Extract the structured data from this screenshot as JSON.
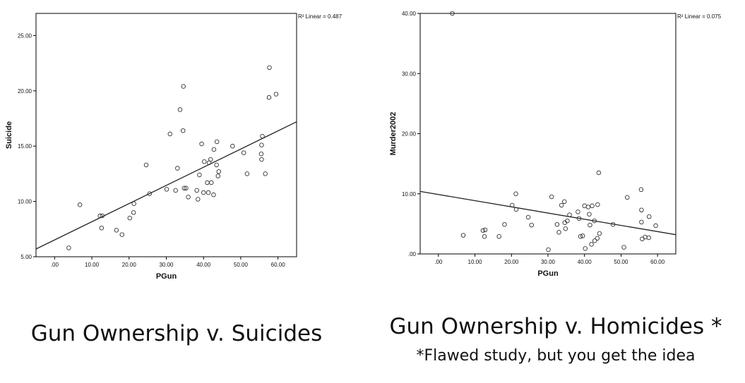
{
  "chart_data": [
    {
      "type": "scatter",
      "title": "",
      "xlabel": "PGun",
      "ylabel": "Suicide",
      "xlim": [
        -5,
        65
      ],
      "ylim": [
        5,
        27
      ],
      "x_ticks": [
        ".00",
        "10.00",
        "20.00",
        "30.00",
        "40.00",
        "50.00",
        "60.00"
      ],
      "x_tick_values": [
        0,
        10,
        20,
        30,
        40,
        50,
        60
      ],
      "y_ticks": [
        "5.00",
        "10.00",
        "15.00",
        "20.00",
        "25.00"
      ],
      "y_tick_values": [
        5,
        10,
        15,
        20,
        25
      ],
      "annotation": "R² Linear = 0.487",
      "fit_line": [
        [
          -5,
          5.7
        ],
        [
          65,
          17.2
        ]
      ],
      "points": [
        [
          3.8,
          5.8
        ],
        [
          6.8,
          9.7
        ],
        [
          12.2,
          8.7
        ],
        [
          12.6,
          7.6
        ],
        [
          12.8,
          8.7
        ],
        [
          16.6,
          7.4
        ],
        [
          18.1,
          7.0
        ],
        [
          20.2,
          8.5
        ],
        [
          21.2,
          9.0
        ],
        [
          21.3,
          9.8
        ],
        [
          24.6,
          13.3
        ],
        [
          25.5,
          10.7
        ],
        [
          30.1,
          11.1
        ],
        [
          31.0,
          16.1
        ],
        [
          32.5,
          11.0
        ],
        [
          33.0,
          13.0
        ],
        [
          33.7,
          18.3
        ],
        [
          34.5,
          16.4
        ],
        [
          34.6,
          20.4
        ],
        [
          34.8,
          11.2
        ],
        [
          35.3,
          11.2
        ],
        [
          35.9,
          10.4
        ],
        [
          38.2,
          11.0
        ],
        [
          38.5,
          10.2
        ],
        [
          38.9,
          12.4
        ],
        [
          39.5,
          15.2
        ],
        [
          40.0,
          10.8
        ],
        [
          40.2,
          13.6
        ],
        [
          41.0,
          11.7
        ],
        [
          41.3,
          10.8
        ],
        [
          41.5,
          13.5
        ],
        [
          41.9,
          13.8
        ],
        [
          42.1,
          11.7
        ],
        [
          42.7,
          10.6
        ],
        [
          42.8,
          14.7
        ],
        [
          43.5,
          13.3
        ],
        [
          43.6,
          15.4
        ],
        [
          43.9,
          12.3
        ],
        [
          44.1,
          12.7
        ],
        [
          47.8,
          15.0
        ],
        [
          50.8,
          14.4
        ],
        [
          51.7,
          12.5
        ],
        [
          55.5,
          14.3
        ],
        [
          55.6,
          13.8
        ],
        [
          55.6,
          15.1
        ],
        [
          55.8,
          15.9
        ],
        [
          56.6,
          12.5
        ],
        [
          57.6,
          19.4
        ],
        [
          57.7,
          22.1
        ],
        [
          59.5,
          19.7
        ]
      ],
      "grid": false,
      "legend": "none"
    },
    {
      "type": "scatter",
      "title": "",
      "xlabel": "PGun",
      "ylabel": "Murder2002",
      "xlim": [
        -5,
        65
      ],
      "ylim": [
        0,
        40
      ],
      "x_ticks": [
        ".00",
        "10.00",
        "20.00",
        "30.00",
        "40.00",
        "50.00",
        "60.00"
      ],
      "x_tick_values": [
        0,
        10,
        20,
        30,
        40,
        50,
        60
      ],
      "y_ticks": [
        ".00",
        "10.00",
        "20.00",
        "30.00",
        "40.00"
      ],
      "y_tick_values": [
        0,
        10,
        20,
        30,
        40
      ],
      "annotation": "R² Linear = 0.075",
      "fit_line": [
        [
          -5,
          10.4
        ],
        [
          65,
          3.2
        ]
      ],
      "points": [
        [
          3.8,
          40.0
        ],
        [
          6.8,
          3.1
        ],
        [
          12.2,
          3.9
        ],
        [
          12.6,
          2.9
        ],
        [
          12.8,
          4.0
        ],
        [
          16.6,
          2.9
        ],
        [
          18.1,
          4.9
        ],
        [
          20.2,
          8.1
        ],
        [
          21.2,
          10.0
        ],
        [
          21.3,
          7.4
        ],
        [
          24.6,
          6.1
        ],
        [
          25.5,
          4.8
        ],
        [
          30.1,
          0.7
        ],
        [
          31.0,
          9.5
        ],
        [
          32.5,
          4.9
        ],
        [
          33.0,
          3.6
        ],
        [
          33.7,
          8.1
        ],
        [
          34.5,
          8.7
        ],
        [
          34.6,
          5.2
        ],
        [
          34.8,
          4.2
        ],
        [
          35.3,
          5.5
        ],
        [
          35.9,
          6.5
        ],
        [
          38.2,
          7.0
        ],
        [
          38.5,
          5.9
        ],
        [
          38.9,
          2.9
        ],
        [
          39.5,
          3.0
        ],
        [
          40.0,
          8.0
        ],
        [
          40.2,
          0.9
        ],
        [
          41.0,
          7.8
        ],
        [
          41.3,
          6.6
        ],
        [
          41.5,
          4.8
        ],
        [
          41.9,
          1.6
        ],
        [
          42.1,
          8.0
        ],
        [
          42.7,
          5.5
        ],
        [
          42.8,
          2.2
        ],
        [
          43.5,
          2.6
        ],
        [
          43.6,
          8.2
        ],
        [
          43.9,
          13.5
        ],
        [
          44.1,
          3.4
        ],
        [
          47.8,
          4.9
        ],
        [
          50.8,
          1.1
        ],
        [
          51.7,
          9.4
        ],
        [
          55.5,
          10.7
        ],
        [
          55.6,
          7.3
        ],
        [
          55.6,
          5.3
        ],
        [
          55.8,
          2.5
        ],
        [
          56.6,
          2.8
        ],
        [
          57.6,
          2.7
        ],
        [
          57.7,
          6.2
        ],
        [
          59.5,
          4.7
        ]
      ],
      "grid": false,
      "legend": "none"
    }
  ],
  "captions": {
    "left": "Gun Ownership v. Suicides",
    "right": "Gun Ownership v. Homicides *",
    "note": "*Flawed study, but you get the idea"
  },
  "colors": {
    "frame": "#000000",
    "point": "#333333",
    "line": "#222222",
    "text": "#111111"
  }
}
